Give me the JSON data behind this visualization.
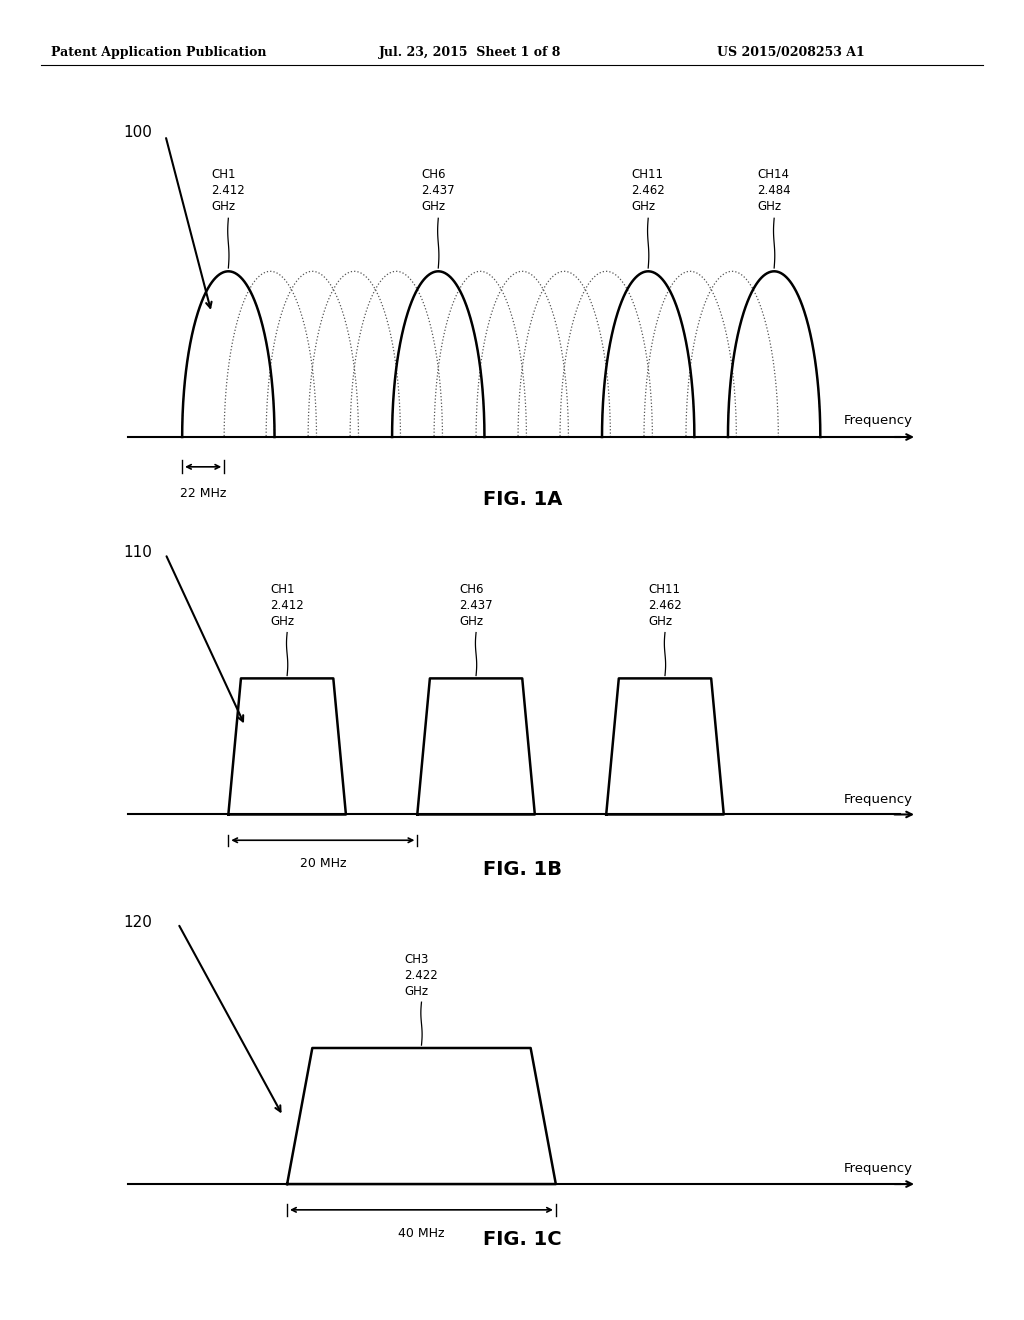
{
  "bg_color": "#ffffff",
  "header_left": "Patent Application Publication",
  "header_mid": "Jul. 23, 2015  Sheet 1 of 8",
  "header_right": "US 2015/0208253 A1",
  "fig1a_label": "100",
  "fig1a_title": "FIG. 1A",
  "fig1a_ch_names": [
    "CH1",
    "CH6",
    "CH11",
    "CH14"
  ],
  "fig1a_ch_freqs": [
    "2.412",
    "2.437",
    "2.462",
    "2.484"
  ],
  "fig1a_bw_text": "22 MHz",
  "fig1a_freq_label": "Frequency",
  "fig1b_label": "110",
  "fig1b_title": "FIG. 1B",
  "fig1b_ch_names": [
    "CH1",
    "CH6",
    "CH11"
  ],
  "fig1b_ch_freqs": [
    "2.412",
    "2.437",
    "2.462"
  ],
  "fig1b_bw_text": "20 MHz",
  "fig1b_freq_label": "Frequency",
  "fig1c_label": "120",
  "fig1c_title": "FIG. 1C",
  "fig1c_ch_names": [
    "CH3"
  ],
  "fig1c_ch_freqs": [
    "2.422"
  ],
  "fig1c_bw_text": "40 MHz",
  "fig1c_freq_label": "Frequency"
}
